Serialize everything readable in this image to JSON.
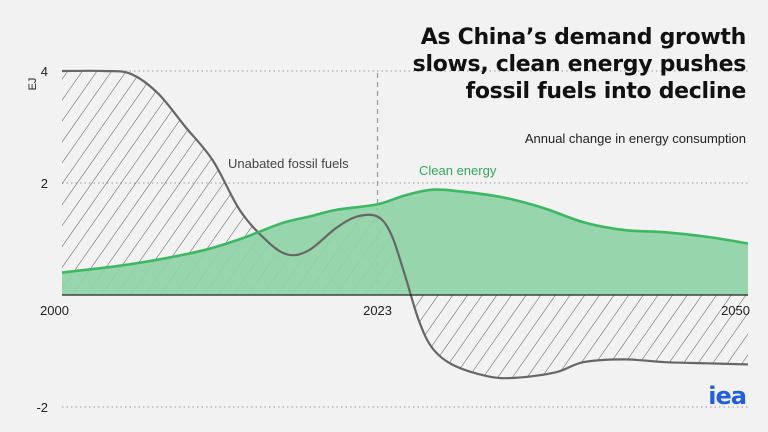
{
  "title": "As China’s demand growth slows, clean energy pushes fossil fuels into decline",
  "logo_text": "iea",
  "colors": {
    "clean_fill": "#8fd3a6",
    "clean_line": "#3cb862",
    "fossil_line": "#666666",
    "hatch": "#555555",
    "logo": "#1f5fe0"
  },
  "chart_data": {
    "type": "area",
    "subtitle": "Annual change in energy consumption",
    "ylabel": "EJ",
    "ylim": [
      -2.0,
      4.2
    ],
    "xlim": [
      2000,
      2050
    ],
    "yticks": [
      4,
      2,
      -2
    ],
    "xticks": [
      2000,
      2023,
      2050
    ],
    "marker_year": 2023,
    "grid": "dotted lines at y ticks",
    "series": [
      {
        "name": "Clean energy",
        "style": "filled-area",
        "points": [
          [
            2000,
            0.4
          ],
          [
            2005,
            0.55
          ],
          [
            2010,
            0.78
          ],
          [
            2013,
            1.0
          ],
          [
            2016,
            1.28
          ],
          [
            2018,
            1.4
          ],
          [
            2020,
            1.52
          ],
          [
            2023,
            1.62
          ],
          [
            2025,
            1.78
          ],
          [
            2027,
            1.88
          ],
          [
            2029,
            1.85
          ],
          [
            2032,
            1.75
          ],
          [
            2035,
            1.56
          ],
          [
            2038,
            1.3
          ],
          [
            2041,
            1.16
          ],
          [
            2044,
            1.12
          ],
          [
            2047,
            1.04
          ],
          [
            2050,
            0.92
          ]
        ]
      },
      {
        "name": "Unabated fossil fuels",
        "style": "hatched-area",
        "points": [
          [
            2000,
            4.0
          ],
          [
            2003,
            4.0
          ],
          [
            2005,
            3.95
          ],
          [
            2007,
            3.6
          ],
          [
            2009,
            3.0
          ],
          [
            2011,
            2.4
          ],
          [
            2013,
            1.5
          ],
          [
            2015,
            0.95
          ],
          [
            2016.5,
            0.72
          ],
          [
            2018,
            0.8
          ],
          [
            2020,
            1.2
          ],
          [
            2021.5,
            1.4
          ],
          [
            2023,
            1.4
          ],
          [
            2024,
            1.08
          ],
          [
            2025,
            0.35
          ],
          [
            2026,
            -0.45
          ],
          [
            2027,
            -0.95
          ],
          [
            2028.5,
            -1.25
          ],
          [
            2031,
            -1.45
          ],
          [
            2033,
            -1.48
          ],
          [
            2036,
            -1.38
          ],
          [
            2038,
            -1.2
          ],
          [
            2041,
            -1.15
          ],
          [
            2044,
            -1.2
          ],
          [
            2047,
            -1.22
          ],
          [
            2050,
            -1.24
          ]
        ]
      }
    ]
  }
}
